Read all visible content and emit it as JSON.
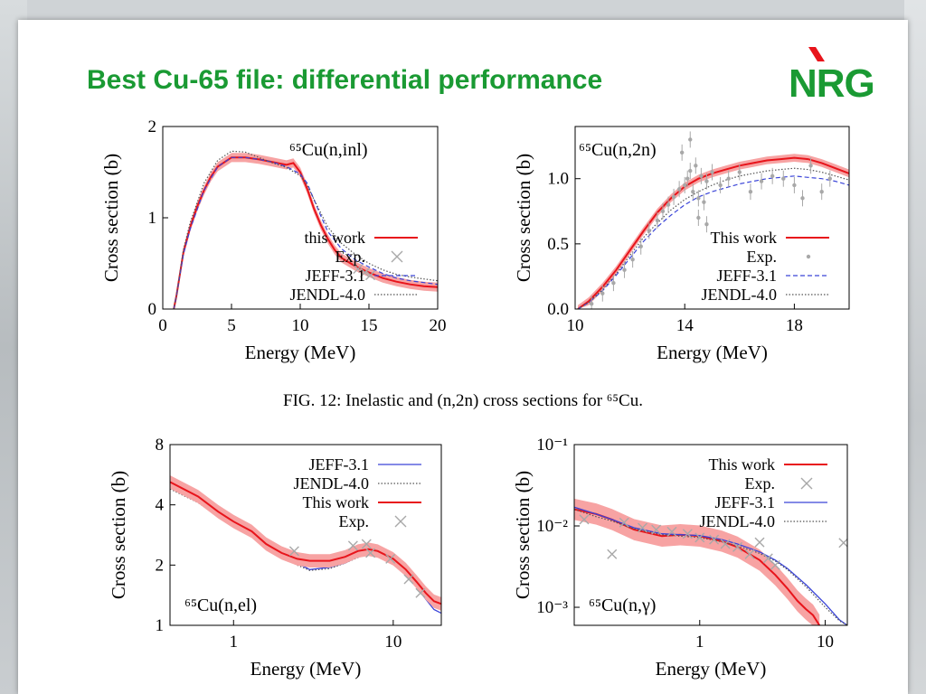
{
  "slide": {
    "title": "Best Cu-65 file: differential performance",
    "logo_text": "NRG",
    "caption": "FIG. 12: Inelastic and (n,2n) cross sections for ⁶⁵Cu.",
    "title_color": "#1a9a33"
  },
  "colors": {
    "this_work": "#e8141b",
    "band": "#f7a3a3",
    "jeff": "#3a44d8",
    "jendl": "#555555",
    "exp": "#a8a8a8"
  },
  "chart_data": [
    {
      "type": "line",
      "title": "⁶⁵Cu(n,inl)",
      "xlabel": "Energy (MeV)",
      "ylabel": "Cross section (b)",
      "xscale": "linear",
      "yscale": "linear",
      "xlim": [
        0,
        20
      ],
      "ylim": [
        0,
        2
      ],
      "xticks": [
        0,
        5,
        10,
        15,
        20
      ],
      "yticks": [
        0,
        1,
        2
      ],
      "legend_position": "bottom-right",
      "legend": [
        "this work",
        "Exp.",
        "JEFF-3.1",
        "JENDL-4.0"
      ],
      "series": [
        {
          "name": "this work",
          "style": "band",
          "x": [
            0.8,
            1.0,
            1.5,
            2,
            2.5,
            3,
            3.5,
            4,
            5,
            6,
            7,
            8,
            9,
            9.5,
            10,
            10.5,
            11,
            11.5,
            12,
            12.5,
            13,
            14,
            15,
            16,
            17,
            18,
            19,
            20
          ],
          "y": [
            0,
            0.15,
            0.62,
            0.9,
            1.12,
            1.3,
            1.45,
            1.56,
            1.66,
            1.66,
            1.64,
            1.61,
            1.58,
            1.6,
            1.5,
            1.32,
            1.1,
            0.92,
            0.77,
            0.65,
            0.56,
            0.47,
            0.4,
            0.34,
            0.3,
            0.27,
            0.25,
            0.24
          ],
          "band": 0.05
        },
        {
          "name": "JEFF-3.1",
          "style": "dashed",
          "x": [
            0.8,
            1.0,
            1.5,
            2,
            3,
            4,
            5,
            6,
            7,
            8,
            9,
            10,
            10.5,
            11,
            11.5,
            12,
            13,
            14,
            15,
            16,
            17,
            18,
            19,
            20
          ],
          "y": [
            0,
            0.15,
            0.6,
            0.88,
            1.3,
            1.56,
            1.66,
            1.66,
            1.64,
            1.61,
            1.56,
            1.48,
            1.38,
            1.2,
            1.02,
            0.85,
            0.66,
            0.54,
            0.46,
            0.39,
            0.34,
            0.31,
            0.29,
            0.27
          ]
        },
        {
          "name": "JENDL-4.0",
          "style": "dotted",
          "x": [
            0.8,
            1.0,
            1.5,
            2,
            3,
            4,
            5,
            6,
            7,
            8,
            9,
            10,
            10.5,
            11,
            11.5,
            12,
            13,
            14,
            15,
            16,
            17,
            18,
            19,
            20
          ],
          "y": [
            0,
            0.15,
            0.65,
            0.95,
            1.38,
            1.63,
            1.73,
            1.72,
            1.66,
            1.6,
            1.55,
            1.46,
            1.36,
            1.2,
            1.05,
            0.9,
            0.72,
            0.6,
            0.5,
            0.43,
            0.38,
            0.35,
            0.33,
            0.31
          ]
        },
        {
          "name": "Exp.",
          "style": "cross",
          "x": [
            14.2,
            14.7,
            15.1
          ],
          "y": [
            0.44,
            0.4,
            0.37
          ]
        }
      ]
    },
    {
      "type": "line",
      "title": "⁶⁵Cu(n,2n)",
      "xlabel": "Energy (MeV)",
      "ylabel": "Cross section (b)",
      "xscale": "linear",
      "yscale": "linear",
      "xlim": [
        10,
        20
      ],
      "ylim": [
        0,
        1.4
      ],
      "xticks": [
        10,
        14,
        18
      ],
      "yticks": [
        0.0,
        0.5,
        1.0
      ],
      "ytick_labels": [
        "0.0",
        "0.5",
        "1.0"
      ],
      "legend_position": "bottom-right",
      "legend": [
        "This work",
        "Exp.",
        "JEFF-3.1",
        "JENDL-4.0"
      ],
      "series": [
        {
          "name": "This work",
          "style": "band",
          "x": [
            10.1,
            10.5,
            11,
            11.5,
            12,
            12.5,
            13,
            13.5,
            14,
            14.5,
            15,
            15.5,
            16,
            16.5,
            17,
            17.5,
            18,
            18.5,
            19,
            19.5,
            20
          ],
          "y": [
            0,
            0.06,
            0.17,
            0.3,
            0.45,
            0.6,
            0.74,
            0.85,
            0.94,
            1.0,
            1.04,
            1.07,
            1.1,
            1.12,
            1.14,
            1.15,
            1.16,
            1.15,
            1.12,
            1.08,
            1.04
          ],
          "band": 0.03
        },
        {
          "name": "JEFF-3.1",
          "style": "dashed",
          "x": [
            10.1,
            10.5,
            11,
            11.5,
            12,
            12.5,
            13,
            13.5,
            14,
            14.5,
            15,
            15.5,
            16,
            16.5,
            17,
            17.5,
            18,
            18.5,
            19,
            19.5,
            20
          ],
          "y": [
            0,
            0.05,
            0.14,
            0.26,
            0.39,
            0.52,
            0.63,
            0.72,
            0.8,
            0.86,
            0.9,
            0.93,
            0.96,
            0.98,
            1.0,
            1.01,
            1.02,
            1.01,
            1.0,
            0.98,
            0.95
          ]
        },
        {
          "name": "JENDL-4.0",
          "style": "dotted",
          "x": [
            10.1,
            10.5,
            11,
            11.5,
            12,
            12.5,
            13,
            13.5,
            14,
            14.5,
            15,
            15.5,
            16,
            16.5,
            17,
            17.5,
            18,
            18.5,
            19,
            19.5,
            20
          ],
          "y": [
            0,
            0.05,
            0.15,
            0.27,
            0.41,
            0.55,
            0.66,
            0.76,
            0.84,
            0.9,
            0.95,
            0.99,
            1.02,
            1.04,
            1.06,
            1.07,
            1.08,
            1.07,
            1.05,
            1.02,
            0.99
          ]
        },
        {
          "name": "Exp.",
          "style": "dot",
          "x": [
            10.6,
            11.0,
            11.4,
            11.8,
            12.1,
            12.4,
            12.7,
            13.0,
            13.2,
            13.4,
            13.6,
            13.8,
            14.0,
            14.1,
            14.2,
            14.3,
            14.4,
            14.5,
            14.6,
            14.7,
            14.8,
            15.0,
            15.3,
            15.6,
            16.0,
            16.4,
            16.8,
            17.2,
            17.6,
            18.0,
            18.3,
            18.6,
            19.0,
            19.3,
            13.9,
            14.2,
            14.5,
            14.8
          ],
          "y": [
            0.04,
            0.12,
            0.2,
            0.3,
            0.38,
            0.48,
            0.6,
            0.68,
            0.75,
            0.8,
            0.86,
            0.92,
            0.95,
            1.0,
            1.06,
            0.9,
            1.1,
            0.85,
            1.02,
            0.82,
            0.98,
            1.05,
            0.95,
            1.0,
            1.05,
            0.9,
            0.98,
            1.02,
            1.0,
            0.95,
            0.85,
            1.1,
            0.9,
            1.0,
            1.2,
            1.3,
            0.7,
            0.65
          ]
        }
      ]
    },
    {
      "type": "line",
      "title": "⁶⁵Cu(n,el)",
      "xlabel": "Energy (MeV)",
      "ylabel": "Cross section (b)",
      "xscale": "log",
      "yscale": "log",
      "xlim": [
        0.4,
        20
      ],
      "ylim": [
        1,
        8
      ],
      "xticks": [
        1,
        10
      ],
      "yticks": [
        1,
        2,
        4,
        8
      ],
      "legend_position": "top-right",
      "legend": [
        "JEFF-3.1",
        "JENDL-4.0",
        "This work",
        "Exp."
      ],
      "series": [
        {
          "name": "JEFF-3.1",
          "style": "solid",
          "x": [
            0.4,
            0.6,
            0.8,
            1.0,
            1.3,
            1.6,
            2.0,
            2.5,
            3,
            4,
            5,
            6,
            7,
            8,
            10,
            12,
            14,
            16,
            18,
            20
          ],
          "y": [
            5.0,
            4.3,
            3.6,
            3.2,
            2.9,
            2.5,
            2.25,
            2.05,
            1.9,
            1.95,
            2.05,
            2.2,
            2.3,
            2.25,
            2.05,
            1.8,
            1.55,
            1.35,
            1.2,
            1.15
          ]
        },
        {
          "name": "JENDL-4.0",
          "style": "dotted",
          "x": [
            0.4,
            0.6,
            0.8,
            1.0,
            1.3,
            1.6,
            2.0,
            2.5,
            3,
            4,
            5,
            6,
            7,
            8,
            10,
            12,
            14,
            16,
            18,
            20
          ],
          "y": [
            4.8,
            4.1,
            3.5,
            3.1,
            2.8,
            2.45,
            2.2,
            2.0,
            1.88,
            1.92,
            2.05,
            2.18,
            2.28,
            2.25,
            2.05,
            1.8,
            1.55,
            1.4,
            1.28,
            1.22
          ]
        },
        {
          "name": "This work",
          "style": "band",
          "x": [
            0.4,
            0.6,
            0.8,
            1.0,
            1.3,
            1.6,
            2.0,
            2.5,
            3,
            4,
            5,
            6,
            7,
            8,
            10,
            12,
            14,
            16,
            18,
            20
          ],
          "y": [
            5.2,
            4.4,
            3.7,
            3.3,
            2.95,
            2.55,
            2.3,
            2.15,
            2.1,
            2.1,
            2.2,
            2.35,
            2.4,
            2.35,
            2.15,
            1.9,
            1.65,
            1.45,
            1.32,
            1.28
          ],
          "band": 0.08
        },
        {
          "name": "Exp.",
          "style": "cross",
          "x": [
            2.4,
            5.6,
            6.8,
            7.2,
            9.6,
            12.5,
            14.8
          ],
          "y": [
            2.35,
            2.5,
            2.55,
            2.3,
            2.15,
            1.7,
            1.45
          ]
        }
      ]
    },
    {
      "type": "line",
      "title": "⁶⁵Cu(n,γ)",
      "xlabel": "Energy (MeV)",
      "ylabel": "Cross section (b)",
      "xscale": "log",
      "yscale": "log",
      "xlim": [
        0.1,
        15
      ],
      "ylim": [
        0.0006,
        0.1
      ],
      "xticks": [
        1,
        10
      ],
      "yticks": [
        0.001,
        0.01,
        0.1
      ],
      "ytick_labels": [
        "10⁻³",
        "10⁻²",
        "10⁻¹"
      ],
      "legend_position": "top-right",
      "legend": [
        "This work",
        "Exp.",
        "JEFF-3.1",
        "JENDL-4.0"
      ],
      "series": [
        {
          "name": "This work",
          "style": "band",
          "x": [
            0.1,
            0.15,
            0.2,
            0.3,
            0.5,
            0.7,
            1.0,
            1.5,
            2,
            3,
            4,
            5,
            6,
            7,
            8,
            9
          ],
          "y": [
            0.016,
            0.014,
            0.012,
            0.009,
            0.0075,
            0.0078,
            0.0075,
            0.0065,
            0.0055,
            0.0038,
            0.0025,
            0.0017,
            0.0012,
            0.00095,
            0.0008,
            0.0006
          ],
          "band": 0.35
        },
        {
          "name": "JEFF-3.1",
          "style": "solid",
          "x": [
            0.1,
            0.15,
            0.2,
            0.3,
            0.5,
            0.7,
            1.0,
            1.5,
            2,
            3,
            4,
            5,
            7,
            10,
            13,
            15
          ],
          "y": [
            0.017,
            0.014,
            0.012,
            0.0095,
            0.008,
            0.0078,
            0.0076,
            0.0068,
            0.006,
            0.0048,
            0.0038,
            0.003,
            0.0019,
            0.0011,
            0.0007,
            0.0006
          ]
        },
        {
          "name": "JENDL-4.0",
          "style": "dotted",
          "x": [
            0.1,
            0.15,
            0.2,
            0.3,
            0.5,
            0.7,
            1.0,
            1.5,
            2,
            3,
            4,
            5,
            7,
            10,
            13,
            15
          ],
          "y": [
            0.016,
            0.013,
            0.0115,
            0.0092,
            0.0078,
            0.0075,
            0.0072,
            0.0064,
            0.0057,
            0.0046,
            0.0037,
            0.0029,
            0.0018,
            0.001,
            0.00068,
            0.0006
          ]
        },
        {
          "name": "Exp.",
          "style": "cross",
          "x": [
            0.12,
            0.2,
            0.25,
            0.35,
            0.45,
            0.6,
            0.8,
            1.0,
            1.3,
            1.6,
            2.0,
            2.5,
            3.0,
            3.5,
            4.0,
            14.0
          ],
          "y": [
            0.012,
            0.0045,
            0.011,
            0.0095,
            0.009,
            0.0085,
            0.008,
            0.0072,
            0.0068,
            0.006,
            0.0055,
            0.0045,
            0.0063,
            0.004,
            0.0033,
            0.0062
          ]
        }
      ]
    }
  ]
}
